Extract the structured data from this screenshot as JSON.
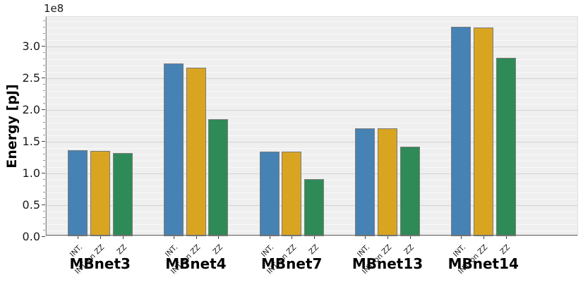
{
  "chart_data": {
    "type": "bar",
    "title": "",
    "ylabel": "Energy [pJ]",
    "y_offset_label": "1e8",
    "value_scale_note": "values are in units of 1e8 pJ",
    "categories": [
      "MBnet3",
      "MBnet4",
      "MBnet7",
      "MBnet13",
      "MBnet14"
    ],
    "bar_tick_labels": [
      "INT.",
      "INT. on ZZ",
      "ZZ"
    ],
    "series": [
      {
        "name": "INT.",
        "color": "#4682B4",
        "values": [
          1.36,
          2.72,
          1.33,
          1.7,
          3.3
        ]
      },
      {
        "name": "INT. on ZZ",
        "color": "#D9A521",
        "values": [
          1.34,
          2.66,
          1.33,
          1.7,
          3.29
        ]
      },
      {
        "name": "ZZ",
        "color": "#2E8B57",
        "values": [
          1.31,
          1.84,
          0.9,
          1.41,
          2.81
        ]
      }
    ],
    "ylim": [
      0,
      3.4667
    ],
    "yticks": [
      {
        "value": 0.0,
        "label": "0.0"
      },
      {
        "value": 0.5,
        "label": "0.5"
      },
      {
        "value": 1.0,
        "label": "1.0"
      },
      {
        "value": 1.5,
        "label": "1.5"
      },
      {
        "value": 2.0,
        "label": "2.0"
      },
      {
        "value": 2.5,
        "label": "2.5"
      },
      {
        "value": 3.0,
        "label": "3.0"
      }
    ],
    "minor_tick_step": 0.1,
    "grid": "horizontal, major dark + minor light",
    "legend_position": "none",
    "colors": {
      "plot_background": "#efefef",
      "figure_background": "#ffffff",
      "major_grid": "#d2d2d2",
      "minor_grid": "#f9f9f9",
      "bar_edge": "#7a7a7a"
    }
  }
}
